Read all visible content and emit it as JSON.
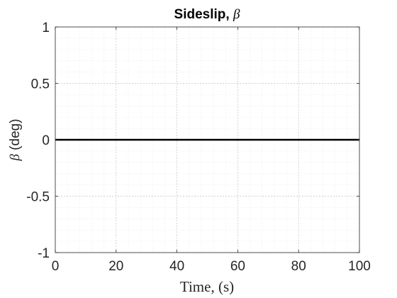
{
  "chart_data": {
    "type": "line",
    "title_text": "Sideslip, ",
    "title_symbol": "β",
    "xlabel": "Time, (s)",
    "ylabel_symbol": "β",
    "ylabel_text": " (deg)",
    "xlim": [
      0,
      100
    ],
    "ylim": [
      -1,
      1
    ],
    "xticks": [
      0,
      20,
      40,
      60,
      80,
      100
    ],
    "yticks": [
      -1,
      -0.5,
      0,
      0.5,
      1
    ],
    "grid": true,
    "minor_grid": true,
    "series": [
      {
        "x": [
          0,
          100
        ],
        "y": [
          0,
          0
        ],
        "color": "#000000"
      }
    ]
  }
}
